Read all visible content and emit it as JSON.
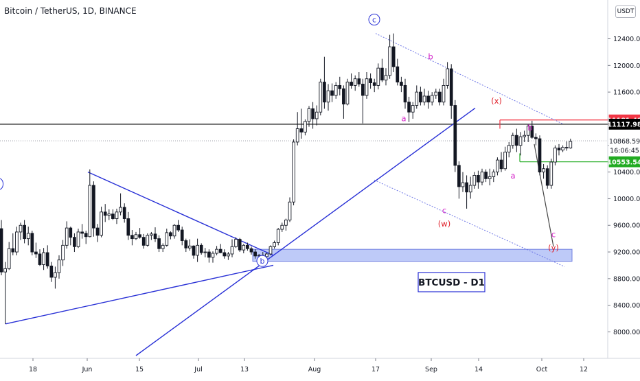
{
  "header": {
    "symbol": "Bitcoin / TetherUS, 1D, BINANCE",
    "currency": "USDT"
  },
  "colors": {
    "up": "#131722",
    "down": "#131722",
    "trendline": "#2830d6",
    "channel": "#6f78e6",
    "wave_red": "#e0202a",
    "wave_magenta": "#d21cc6",
    "zone_fill": "#a8b8f5",
    "marker_red": "#f23645",
    "marker_green": "#22ab22",
    "projection": "#444444"
  },
  "chart_data": {
    "type": "candlestick",
    "x_labels": [
      "18",
      "Jun",
      "15",
      "Jul",
      "13",
      "Aug",
      "17",
      "Sep",
      "14",
      "Oct",
      "12"
    ],
    "y_ticks": [
      12400,
      12000,
      11600,
      11200,
      10800,
      10400,
      10000,
      9600,
      9200,
      8800,
      8400,
      8000
    ],
    "y_tick_labels": [
      "12400.00",
      "12000.00",
      "11600.00",
      "11200.00",
      "10800.00",
      "10400.00",
      "10000.00",
      "9600.00",
      "9200.00",
      "8800.00",
      "8400.00",
      "8000.00"
    ],
    "price_markers": [
      {
        "label": "11181.48",
        "value": 11181.48,
        "style": "red"
      },
      {
        "label": "11117.98",
        "value": 11117.98,
        "style": "black"
      },
      {
        "label": "10868.59",
        "value": 10868.59,
        "style": "plain"
      },
      {
        "label": "16:06:45",
        "value": 10730,
        "style": "plain"
      },
      {
        "label": "10553.54",
        "value": 10553.54,
        "style": "green"
      }
    ],
    "annotations": {
      "box_label": "BTCUSD - D1",
      "waves": [
        {
          "text": "c",
          "style": "circle"
        },
        {
          "text": "b",
          "style": "circle"
        },
        {
          "text": "b",
          "style": "magenta"
        },
        {
          "text": "a",
          "style": "magenta"
        },
        {
          "text": "c",
          "style": "magenta"
        },
        {
          "text": "(w)",
          "style": "red"
        },
        {
          "text": "(x)",
          "style": "red"
        },
        {
          "text": "a",
          "style": "magenta"
        },
        {
          "text": "b",
          "style": "magenta"
        },
        {
          "text": "c",
          "style": "magenta"
        },
        {
          "text": "(y)",
          "style": "red"
        }
      ]
    },
    "candles": [
      [
        9550,
        9680,
        8850,
        8900
      ],
      [
        8900,
        9050,
        8120,
        8950
      ],
      [
        8950,
        9350,
        8930,
        9250
      ],
      [
        9250,
        9480,
        9150,
        9200
      ],
      [
        9200,
        9580,
        9150,
        9500
      ],
      [
        9500,
        9640,
        9380,
        9600
      ],
      [
        9600,
        9680,
        9330,
        9400
      ],
      [
        9400,
        9580,
        9300,
        9480
      ],
      [
        9480,
        9520,
        9150,
        9200
      ],
      [
        9200,
        9340,
        9110,
        9170
      ],
      [
        9170,
        9240,
        8990,
        9010
      ],
      [
        9010,
        9260,
        8930,
        9190
      ],
      [
        9190,
        9300,
        8950,
        8990
      ],
      [
        8990,
        9050,
        8750,
        8820
      ],
      [
        8820,
        8980,
        8650,
        8890
      ],
      [
        8890,
        9150,
        8800,
        9080
      ],
      [
        9080,
        9380,
        8990,
        9300
      ],
      [
        9300,
        9660,
        9250,
        9560
      ],
      [
        9560,
        9580,
        9300,
        9420
      ],
      [
        9420,
        9480,
        9200,
        9280
      ],
      [
        9280,
        9550,
        9260,
        9500
      ],
      [
        9500,
        9620,
        9400,
        9480
      ],
      [
        9480,
        9520,
        9320,
        9430
      ],
      [
        9430,
        10440,
        9420,
        10200
      ],
      [
        10200,
        10260,
        9430,
        9560
      ],
      [
        9560,
        9620,
        9350,
        9450
      ],
      [
        9450,
        9880,
        9420,
        9800
      ],
      [
        9800,
        9920,
        9650,
        9750
      ],
      [
        9750,
        9840,
        9680,
        9770
      ],
      [
        9770,
        9840,
        9680,
        9700
      ],
      [
        9700,
        9850,
        9620,
        9800
      ],
      [
        9800,
        10080,
        9750,
        9870
      ],
      [
        9870,
        9930,
        9640,
        9700
      ],
      [
        9700,
        9800,
        9380,
        9450
      ],
      [
        9450,
        9530,
        9300,
        9400
      ],
      [
        9400,
        9500,
        9380,
        9460
      ],
      [
        9460,
        9560,
        9400,
        9420
      ],
      [
        9420,
        9470,
        9250,
        9300
      ],
      [
        9300,
        9480,
        9280,
        9450
      ],
      [
        9450,
        9500,
        9380,
        9470
      ],
      [
        9470,
        9570,
        9350,
        9400
      ],
      [
        9400,
        9450,
        9200,
        9250
      ],
      [
        9250,
        9330,
        9200,
        9300
      ],
      [
        9300,
        9550,
        9280,
        9490
      ],
      [
        9490,
        9510,
        9390,
        9440
      ],
      [
        9440,
        9620,
        9400,
        9600
      ],
      [
        9600,
        9680,
        9500,
        9530
      ],
      [
        9530,
        9580,
        9300,
        9370
      ],
      [
        9370,
        9400,
        9200,
        9260
      ],
      [
        9260,
        9390,
        9220,
        9290
      ],
      [
        9290,
        9300,
        9100,
        9150
      ],
      [
        9150,
        9400,
        9050,
        9300
      ],
      [
        9300,
        9330,
        9160,
        9190
      ],
      [
        9190,
        9260,
        9120,
        9200
      ],
      [
        9200,
        9240,
        9040,
        9120
      ],
      [
        9120,
        9210,
        9040,
        9180
      ],
      [
        9180,
        9290,
        9150,
        9240
      ],
      [
        9240,
        9320,
        9180,
        9190
      ],
      [
        9190,
        9240,
        9100,
        9140
      ],
      [
        9140,
        9200,
        9080,
        9170
      ],
      [
        9170,
        9390,
        9120,
        9280
      ],
      [
        9280,
        9420,
        9260,
        9390
      ],
      [
        9390,
        9410,
        9200,
        9230
      ],
      [
        9230,
        9320,
        9180,
        9300
      ],
      [
        9300,
        9340,
        9220,
        9250
      ],
      [
        9250,
        9280,
        9160,
        9200
      ],
      [
        9200,
        9240,
        9100,
        9140
      ],
      [
        9140,
        9170,
        9090,
        9150
      ],
      [
        9150,
        9200,
        9110,
        9130
      ],
      [
        9130,
        9190,
        9100,
        9170
      ],
      [
        9170,
        9300,
        9150,
        9280
      ],
      [
        9280,
        9370,
        9250,
        9340
      ],
      [
        9340,
        9560,
        9300,
        9540
      ],
      [
        9540,
        9640,
        9500,
        9600
      ],
      [
        9600,
        9700,
        9520,
        9680
      ],
      [
        9680,
        10020,
        9650,
        9950
      ],
      [
        9950,
        10890,
        9900,
        10850
      ],
      [
        10850,
        11300,
        10800,
        11050
      ],
      [
        11050,
        11350,
        10900,
        11000
      ],
      [
        11000,
        11190,
        10950,
        11160
      ],
      [
        11160,
        11390,
        11080,
        11350
      ],
      [
        11350,
        11450,
        11050,
        11200
      ],
      [
        11200,
        11400,
        11100,
        11300
      ],
      [
        11300,
        11800,
        11250,
        11750
      ],
      [
        11750,
        12130,
        11350,
        11450
      ],
      [
        11450,
        11720,
        11320,
        11620
      ],
      [
        11620,
        11730,
        11450,
        11550
      ],
      [
        11550,
        11750,
        11500,
        11700
      ],
      [
        11700,
        11830,
        11550,
        11650
      ],
      [
        11650,
        11700,
        11200,
        11420
      ],
      [
        11420,
        11800,
        11400,
        11750
      ],
      [
        11750,
        11880,
        11650,
        11700
      ],
      [
        11700,
        11850,
        11620,
        11800
      ],
      [
        11800,
        11900,
        11680,
        11720
      ],
      [
        11720,
        11800,
        11130,
        11550
      ],
      [
        11550,
        11900,
        11500,
        11800
      ],
      [
        11800,
        11880,
        11650,
        11740
      ],
      [
        11740,
        11800,
        11600,
        11700
      ],
      [
        11700,
        12030,
        11640,
        11960
      ],
      [
        11960,
        12100,
        11750,
        11780
      ],
      [
        11780,
        11960,
        11700,
        11850
      ],
      [
        11850,
        12460,
        11800,
        12280
      ],
      [
        12280,
        12480,
        11900,
        11980
      ],
      [
        11980,
        12100,
        11700,
        11750
      ],
      [
        11750,
        11830,
        11600,
        11700
      ],
      [
        11700,
        11800,
        11350,
        11450
      ],
      [
        11450,
        11530,
        11150,
        11300
      ],
      [
        11300,
        11450,
        11200,
        11400
      ],
      [
        11400,
        11700,
        11350,
        11600
      ],
      [
        11600,
        11680,
        11400,
        11450
      ],
      [
        11450,
        11650,
        11400,
        11540
      ],
      [
        11540,
        11620,
        11350,
        11450
      ],
      [
        11450,
        11600,
        11400,
        11550
      ],
      [
        11550,
        11650,
        11500,
        11600
      ],
      [
        11600,
        11650,
        11400,
        11450
      ],
      [
        11450,
        11800,
        11400,
        11700
      ],
      [
        11700,
        12050,
        11650,
        11950
      ],
      [
        11950,
        12020,
        11200,
        11400
      ],
      [
        11400,
        11480,
        10400,
        10500
      ],
      [
        10500,
        10560,
        10000,
        10180
      ],
      [
        10180,
        10400,
        10100,
        10240
      ],
      [
        10240,
        10350,
        9850,
        10100
      ],
      [
        10100,
        10330,
        10000,
        10200
      ],
      [
        10200,
        10400,
        10150,
        10350
      ],
      [
        10350,
        10420,
        10150,
        10250
      ],
      [
        10250,
        10450,
        10200,
        10400
      ],
      [
        10400,
        10440,
        10250,
        10300
      ],
      [
        10300,
        10450,
        10200,
        10330
      ],
      [
        10330,
        10440,
        10250,
        10400
      ],
      [
        10400,
        10620,
        10350,
        10580
      ],
      [
        10580,
        10700,
        10400,
        10450
      ],
      [
        10450,
        10780,
        10420,
        10700
      ],
      [
        10700,
        10850,
        10620,
        10800
      ],
      [
        10800,
        10990,
        10750,
        10950
      ],
      [
        10950,
        11050,
        10700,
        10800
      ],
      [
        10800,
        11000,
        10650,
        10930
      ],
      [
        10930,
        11020,
        10850,
        10950
      ],
      [
        10950,
        11120,
        10850,
        11090
      ],
      [
        11090,
        11170,
        10900,
        10920
      ],
      [
        10920,
        10980,
        10800,
        10900
      ],
      [
        10900,
        10950,
        10350,
        10400
      ],
      [
        10400,
        10520,
        10300,
        10450
      ],
      [
        10450,
        10500,
        10150,
        10200
      ],
      [
        10200,
        10600,
        10150,
        10550
      ],
      [
        10550,
        10800,
        10500,
        10760
      ],
      [
        10760,
        10820,
        10650,
        10730
      ],
      [
        10730,
        10800,
        10700,
        10770
      ],
      [
        10770,
        10860,
        10720,
        10760
      ],
      [
        10760,
        10900,
        10750,
        10860
      ]
    ]
  }
}
